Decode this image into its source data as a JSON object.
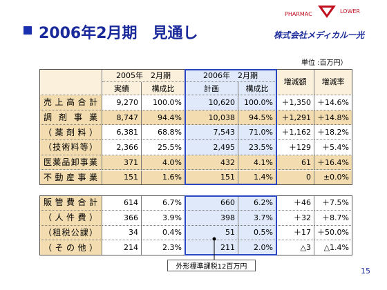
{
  "header": {
    "title": "2006年2月期　見通し",
    "logo_left": "PHARMAC",
    "logo_right": "LOWER",
    "company": "株式会社メディカル一光"
  },
  "unit": "単位 :百万円）",
  "table": {
    "group_headers": [
      "2005年　2月期",
      "2006年　2月期",
      "増減額",
      "増減率"
    ],
    "sub_headers": [
      "実績",
      "構成比",
      "計画",
      "構成比"
    ],
    "rows": [
      [
        "売上高合計",
        "9,270",
        "100.0%",
        "10,620",
        "100.0%",
        "＋1,350",
        "＋14.6%"
      ],
      [
        "調剤事業",
        "8,747",
        "94.4%",
        "10,038",
        "94.5%",
        "＋1,291",
        "＋14.8%"
      ],
      [
        "（薬剤料）",
        "6,381",
        "68.8%",
        "7,543",
        "71.0%",
        "＋1,162",
        "＋18.2%"
      ],
      [
        "（技術料等）",
        "2,366",
        "25.5%",
        "2,495",
        "23.5%",
        "＋129",
        "＋5.4%"
      ],
      [
        "医薬品卸事業",
        "371",
        "4.0%",
        "432",
        "4.1%",
        "61",
        "＋16.4%"
      ],
      [
        "不動産事業",
        "151",
        "1.6%",
        "151",
        "1.4%",
        "0",
        "±0.0%"
      ]
    ],
    "expense_rows": [
      [
        "販管費合計",
        "614",
        "6.7%",
        "660",
        "6.2%",
        "＋46",
        "＋7.5%"
      ],
      [
        "（人件費）",
        "366",
        "3.9%",
        "398",
        "3.7%",
        "＋32",
        "＋8.7%"
      ],
      [
        "（租税公課）",
        "34",
        "0.4%",
        "51",
        "0.5%",
        "＋17",
        "＋50.0%"
      ],
      [
        "（その他）",
        "214",
        "2.3%",
        "211",
        "2.0%",
        "△3",
        "△1.4%"
      ]
    ]
  },
  "annotation": "外形標準課税12百万円",
  "page_number": "15"
}
